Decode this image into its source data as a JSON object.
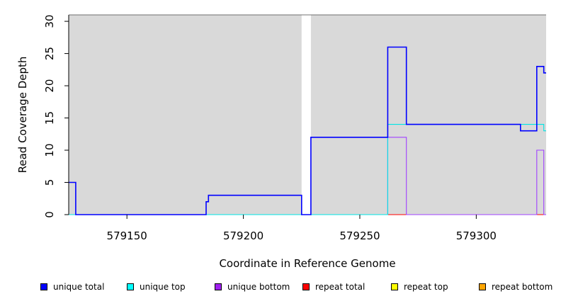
{
  "chart_data": {
    "type": "line",
    "title": "",
    "xlabel": "Coordinate in Reference Genome",
    "ylabel": "Read Coverage Depth",
    "xlim": [
      579125,
      579330
    ],
    "ylim": [
      0,
      31
    ],
    "x_ticks": [
      "579150",
      "579200",
      "579250",
      "579300"
    ],
    "y_ticks": [
      "0",
      "5",
      "10",
      "15",
      "20",
      "25",
      "30"
    ],
    "gray_regions": [
      [
        579125,
        579225
      ],
      [
        579229,
        579330
      ]
    ],
    "series": [
      {
        "name": "unique total",
        "color": "#0000ff",
        "x": [
          579125,
          579128,
          579128,
          579184,
          579184,
          579185,
          579185,
          579225,
          579225,
          579229,
          579229,
          579262,
          579262,
          579270,
          579270,
          579319,
          579319,
          579326,
          579326,
          579329,
          579329,
          579330
        ],
        "y": [
          5,
          5,
          0,
          0,
          2,
          2,
          3,
          3,
          0,
          0,
          12,
          12,
          26,
          26,
          14,
          14,
          13,
          13,
          23,
          23,
          22,
          22
        ]
      },
      {
        "name": "unique top",
        "color": "#00e5e5",
        "x": [
          579125,
          579262,
          579262,
          579329,
          579329,
          579330
        ],
        "y": [
          0,
          0,
          14,
          14,
          13,
          13
        ]
      },
      {
        "name": "unique bottom",
        "color": "#a040ff",
        "x": [
          579125,
          579262,
          579262,
          579270,
          579270,
          579326,
          579326,
          579329,
          579329,
          579330
        ],
        "y": [
          0,
          0,
          12,
          12,
          0,
          0,
          10,
          10,
          0,
          0
        ]
      },
      {
        "name": "repeat total",
        "color": "#ff0000",
        "x": [
          579125,
          579330
        ],
        "y": [
          0,
          0
        ]
      },
      {
        "name": "repeat top",
        "color": "#ffff00",
        "x": [
          579125,
          579330
        ],
        "y": [
          0,
          0
        ]
      },
      {
        "name": "repeat bottom",
        "color": "#ffa500",
        "x": [
          579125,
          579330
        ],
        "y": [
          0,
          0
        ]
      }
    ],
    "legend_position": "bottom",
    "grid": false
  },
  "legend": [
    {
      "label": "unique total",
      "color": "#0000ff"
    },
    {
      "label": "unique top",
      "color": "#00ffff"
    },
    {
      "label": "unique bottom",
      "color": "#a020f0"
    },
    {
      "label": "repeat total",
      "color": "#ff0000"
    },
    {
      "label": "repeat top",
      "color": "#ffff00"
    },
    {
      "label": "repeat bottom",
      "color": "#ffa500"
    }
  ]
}
